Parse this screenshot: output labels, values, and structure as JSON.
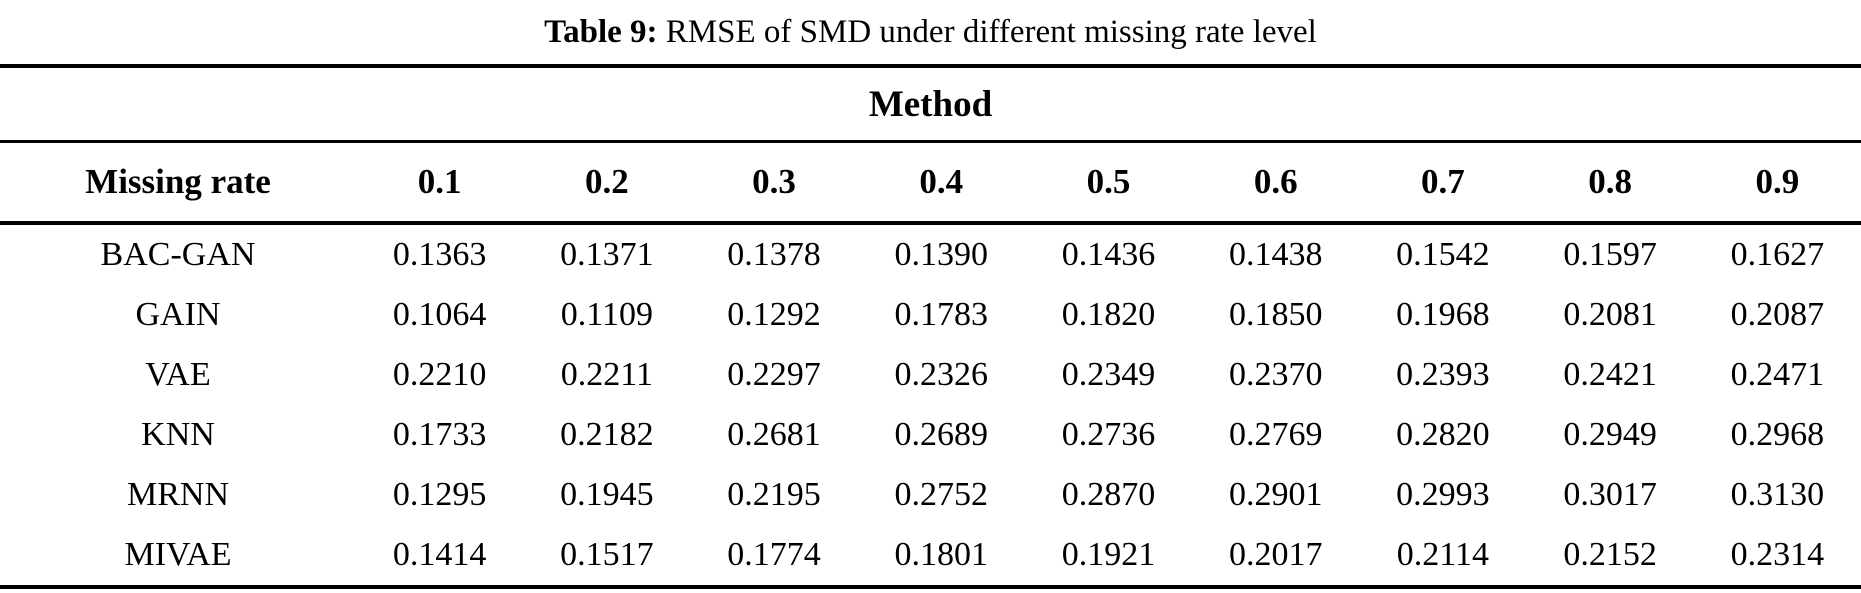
{
  "caption": {
    "label": "Table 9:",
    "text": " RMSE of SMD under different missing rate level"
  },
  "table": {
    "group_header": "Method",
    "row_header_label": "Missing rate",
    "columns": [
      "0.1",
      "0.2",
      "0.3",
      "0.4",
      "0.5",
      "0.6",
      "0.7",
      "0.8",
      "0.9"
    ],
    "rows": [
      {
        "method": "BAC-GAN",
        "values": [
          "0.1363",
          "0.1371",
          "0.1378",
          "0.1390",
          "0.1436",
          "0.1438",
          "0.1542",
          "0.1597",
          "0.1627"
        ]
      },
      {
        "method": "GAIN",
        "values": [
          "0.1064",
          "0.1109",
          "0.1292",
          "0.1783",
          "0.1820",
          "0.1850",
          "0.1968",
          "0.2081",
          "0.2087"
        ]
      },
      {
        "method": "VAE",
        "values": [
          "0.2210",
          "0.2211",
          "0.2297",
          "0.2326",
          "0.2349",
          "0.2370",
          "0.2393",
          "0.2421",
          "0.2471"
        ]
      },
      {
        "method": "KNN",
        "values": [
          "0.1733",
          "0.2182",
          "0.2681",
          "0.2689",
          "0.2736",
          "0.2769",
          "0.2820",
          "0.2949",
          "0.2968"
        ]
      },
      {
        "method": "MRNN",
        "values": [
          "0.1295",
          "0.1945",
          "0.2195",
          "0.2752",
          "0.2870",
          "0.2901",
          "0.2993",
          "0.3017",
          "0.3130"
        ]
      },
      {
        "method": "MIVAE",
        "values": [
          "0.1414",
          "0.1517",
          "0.1774",
          "0.1801",
          "0.1921",
          "0.2017",
          "0.2114",
          "0.2152",
          "0.2314"
        ]
      }
    ]
  },
  "colors": {
    "text": "#000000",
    "background": "#ffffff",
    "rule": "#000000"
  }
}
